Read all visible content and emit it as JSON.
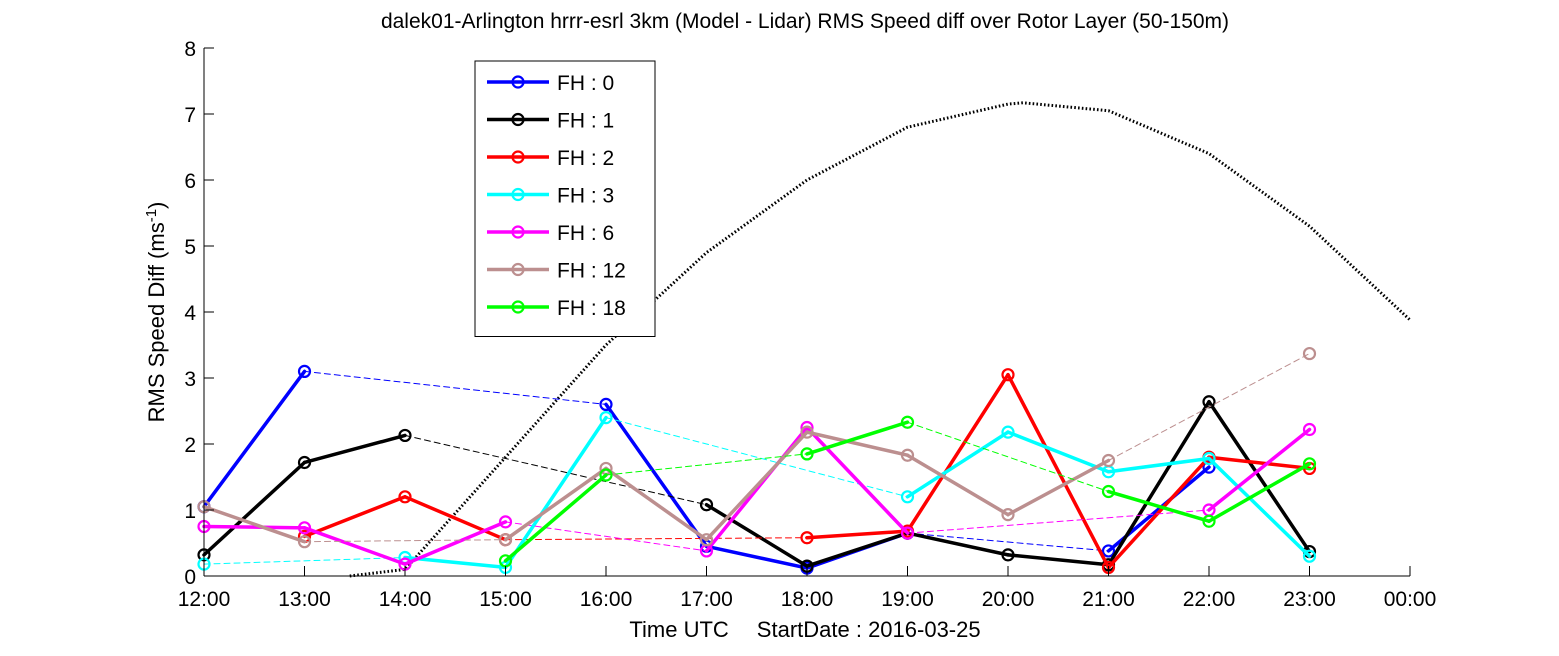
{
  "chart_data": {
    "type": "line",
    "title": "dalek01-Arlington hrrr-esrl 3km (Model - Lidar) RMS Speed diff over Rotor Layer (50-150m)",
    "xlabel": "Time UTC",
    "xlabel_extra": "StartDate : 2016-03-25",
    "ylabel": "RMS Speed Diff (ms",
    "ylabel_sup": "-1",
    "ylabel_close": ")",
    "x_ticks": [
      "12:00",
      "13:00",
      "14:00",
      "15:00",
      "16:00",
      "17:00",
      "18:00",
      "19:00",
      "20:00",
      "21:00",
      "22:00",
      "23:00",
      "00:00"
    ],
    "y_ticks": [
      "0",
      "1",
      "2",
      "3",
      "4",
      "5",
      "6",
      "7",
      "8"
    ],
    "ylim": [
      0,
      8
    ],
    "xlim_hours": [
      12,
      24
    ],
    "legend_position": "upper-left",
    "grid": false,
    "series": [
      {
        "name": "FH : 0",
        "color": "#0000ff",
        "values": [
          1.05,
          3.1,
          null,
          null,
          2.6,
          0.45,
          0.12,
          0.65,
          null,
          0.38,
          1.65,
          null
        ]
      },
      {
        "name": "FH : 1",
        "color": "#000000",
        "values": [
          0.32,
          1.72,
          2.13,
          null,
          null,
          1.08,
          0.15,
          0.65,
          0.32,
          0.17,
          2.64,
          0.37
        ]
      },
      {
        "name": "FH : 2",
        "color": "#ff0000",
        "values": [
          null,
          0.6,
          1.2,
          0.55,
          null,
          null,
          0.58,
          0.68,
          3.05,
          0.13,
          1.8,
          1.63
        ]
      },
      {
        "name": "FH : 3",
        "color": "#00ffff",
        "values": [
          0.18,
          null,
          0.28,
          0.13,
          2.4,
          null,
          null,
          1.2,
          2.18,
          1.58,
          1.78,
          0.3
        ]
      },
      {
        "name": "FH : 6",
        "color": "#ff00ff",
        "values": [
          0.75,
          0.73,
          0.18,
          0.82,
          null,
          0.38,
          2.25,
          0.65,
          null,
          null,
          1.0,
          2.22
        ]
      },
      {
        "name": "FH : 12",
        "color": "#bc8f8f",
        "values": [
          1.05,
          0.52,
          null,
          0.55,
          1.63,
          0.55,
          2.18,
          1.83,
          0.93,
          1.75,
          null,
          3.37
        ]
      },
      {
        "name": "FH : 18",
        "color": "#00ff00",
        "values": [
          null,
          null,
          null,
          0.23,
          1.53,
          null,
          1.85,
          2.33,
          null,
          1.28,
          0.83,
          1.7
        ]
      }
    ],
    "dotted_curve": {
      "description_series": "elevation-like reference curve",
      "color": "#000000",
      "points": [
        [
          13.45,
          0.0
        ],
        [
          14.0,
          0.1
        ],
        [
          15.0,
          1.8
        ],
        [
          16.0,
          3.5
        ],
        [
          17.0,
          4.9
        ],
        [
          18.0,
          6.0
        ],
        [
          19.0,
          6.8
        ],
        [
          20.0,
          7.15
        ],
        [
          20.15,
          7.17
        ],
        [
          21.0,
          7.05
        ],
        [
          22.0,
          6.4
        ],
        [
          23.0,
          5.3
        ],
        [
          24.0,
          3.88
        ]
      ]
    }
  }
}
